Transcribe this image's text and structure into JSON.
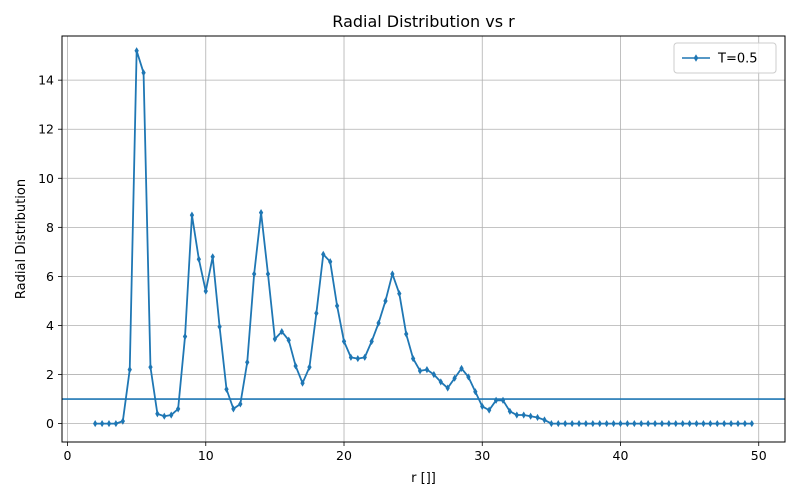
{
  "chart_data": {
    "type": "line",
    "title": "Radial Distribution vs r",
    "xlabel": "r []]",
    "ylabel": "Radial Distribution",
    "xlim": [
      -0.4,
      51.9
    ],
    "ylim": [
      -0.75,
      15.8
    ],
    "xticks": [
      0,
      10,
      20,
      30,
      40,
      50
    ],
    "yticks": [
      0,
      2,
      4,
      6,
      8,
      10,
      12,
      14
    ],
    "grid": true,
    "legend_position": "top-right",
    "reference_line": {
      "y": 1.0,
      "color": "#1f77b4"
    },
    "series": [
      {
        "name": "T=0.5",
        "color": "#1f77b4",
        "marker": "thin-diamond",
        "x": [
          2.0,
          2.5,
          3.0,
          3.5,
          4.0,
          4.5,
          5.0,
          5.5,
          6.0,
          6.5,
          7.0,
          7.5,
          8.0,
          8.5,
          9.0,
          9.5,
          10.0,
          10.5,
          11.0,
          11.5,
          12.0,
          12.5,
          13.0,
          13.5,
          14.0,
          14.5,
          15.0,
          15.5,
          16.0,
          16.5,
          17.0,
          17.5,
          18.0,
          18.5,
          19.0,
          19.5,
          20.0,
          20.5,
          21.0,
          21.5,
          22.0,
          22.5,
          23.0,
          23.5,
          24.0,
          24.5,
          25.0,
          25.5,
          26.0,
          26.5,
          27.0,
          27.5,
          28.0,
          28.5,
          29.0,
          29.5,
          30.0,
          30.5,
          31.0,
          31.5,
          32.0,
          32.5,
          33.0,
          33.5,
          34.0,
          34.5,
          35.0,
          35.5,
          36.0,
          36.5,
          37.0,
          37.5,
          38.0,
          38.5,
          39.0,
          39.5,
          40.0,
          40.5,
          41.0,
          41.5,
          42.0,
          42.5,
          43.0,
          43.5,
          44.0,
          44.5,
          45.0,
          45.5,
          46.0,
          46.5,
          47.0,
          47.5,
          48.0,
          48.5,
          49.0,
          49.5
        ],
        "y": [
          0.0,
          0.0,
          0.0,
          0.0,
          0.1,
          2.2,
          15.2,
          14.3,
          2.3,
          0.4,
          0.3,
          0.35,
          0.6,
          3.55,
          8.5,
          6.7,
          5.4,
          6.8,
          3.95,
          1.4,
          0.6,
          0.8,
          2.5,
          6.1,
          8.6,
          6.1,
          3.45,
          3.75,
          3.4,
          2.35,
          1.65,
          2.3,
          4.5,
          6.9,
          6.6,
          4.8,
          3.35,
          2.7,
          2.65,
          2.7,
          3.35,
          4.1,
          5.0,
          6.1,
          5.3,
          3.65,
          2.65,
          2.15,
          2.2,
          2.0,
          1.7,
          1.45,
          1.85,
          2.25,
          1.9,
          1.3,
          0.7,
          0.55,
          0.95,
          0.95,
          0.5,
          0.35,
          0.35,
          0.3,
          0.25,
          0.15,
          0.0,
          0.0,
          0.0,
          0.0,
          0.0,
          0.0,
          0.0,
          0.0,
          0.0,
          0.0,
          0.0,
          0.0,
          0.0,
          0.0,
          0.0,
          0.0,
          0.0,
          0.0,
          0.0,
          0.0,
          0.0,
          0.0,
          0.0,
          0.0,
          0.0,
          0.0,
          0.0,
          0.0,
          0.0,
          0.0
        ]
      }
    ]
  }
}
